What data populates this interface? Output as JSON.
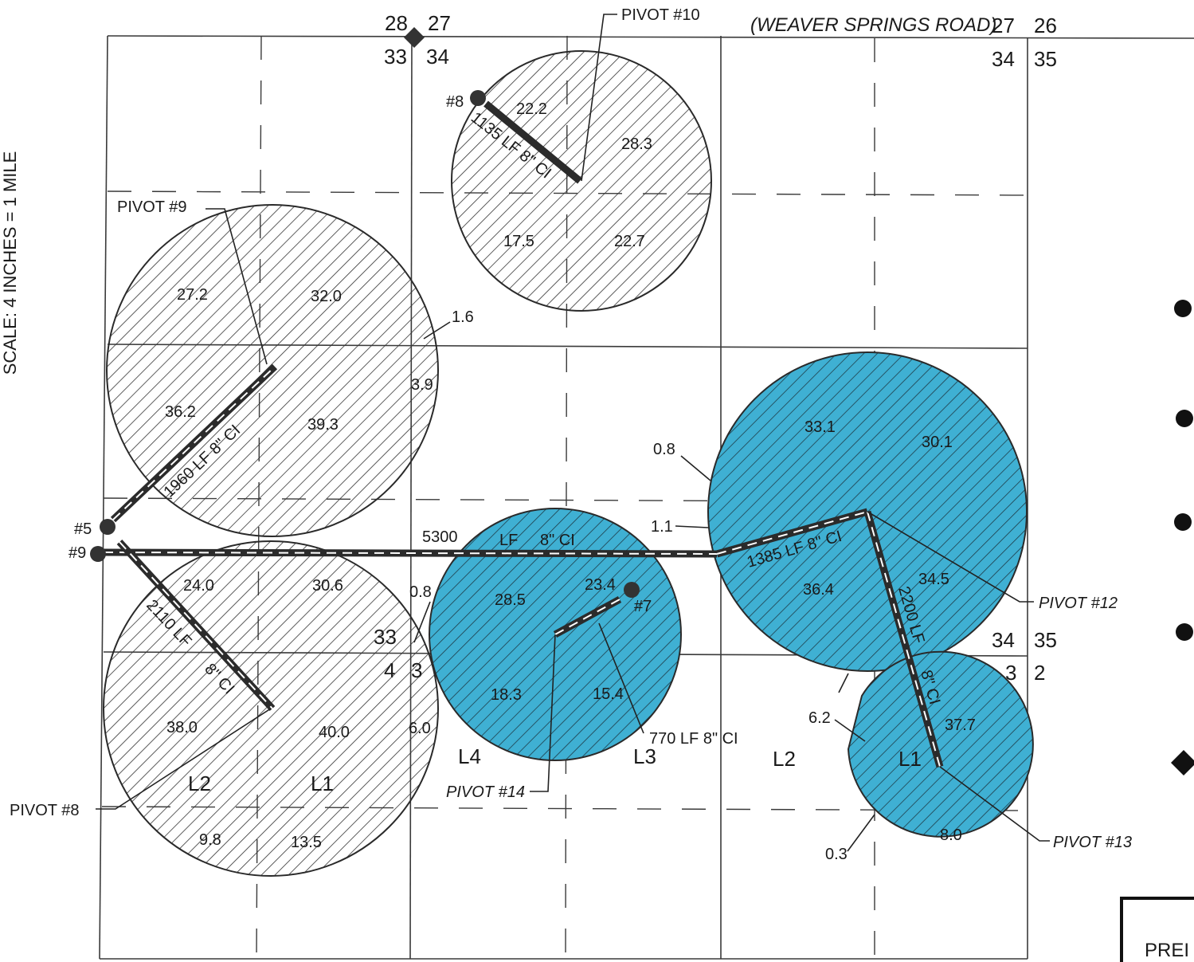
{
  "scale_text": "SCALE: 4 INCHES = 1 MILE",
  "road_text": "(WEAVER SPRINGS ROAD)",
  "title_block_text": "PREI",
  "colors": {
    "proposed": "#3fb0d3",
    "line": "#2b2b2b",
    "paper": "#ffffff"
  },
  "section_numbers": {
    "tl_28": "28",
    "tl_27": "27",
    "tl_33": "33",
    "tl_34": "34",
    "tr_27": "27",
    "tr_26": "26",
    "tr_34": "34",
    "tr_35": "35",
    "mr_34": "34",
    "mr_35": "35",
    "mr_3": "3",
    "mr_2": "2",
    "ml_33": "33",
    "ml_4": "4",
    "ml_3": "3"
  },
  "pivots": {
    "p10": {
      "label": "PIVOT #10",
      "quadrants": [
        "22.2",
        "28.3",
        "17.5",
        "22.7"
      ]
    },
    "p9": {
      "label": "PIVOT #9",
      "quadrants": [
        "27.2",
        "32.0",
        "36.2",
        "39.3"
      ],
      "edge": [
        "1.6",
        "3.9"
      ]
    },
    "p8": {
      "label": "PIVOT #8",
      "quadrants": [
        "24.0",
        "30.6",
        "38.0",
        "40.0",
        "9.8",
        "13.5"
      ],
      "edge": [
        "0.8",
        "6.0"
      ],
      "fields": [
        "L2",
        "L1"
      ]
    },
    "p14": {
      "label": "PIVOT #14",
      "quadrants": [
        "28.5",
        "23.4",
        "18.3",
        "15.4"
      ]
    },
    "p12": {
      "label": "PIVOT #12",
      "quadrants": [
        "33.1",
        "30.1",
        "36.4",
        "34.5"
      ],
      "edge": [
        "0.8",
        "1.1"
      ]
    },
    "p13": {
      "label": "PIVOT #13",
      "quadrants": [
        "37.7",
        "8.0"
      ],
      "edge": [
        "6.2",
        "0.3"
      ],
      "fields": [
        "L1"
      ]
    }
  },
  "fields_middle": [
    "L4",
    "L3",
    "L2"
  ],
  "wells": {
    "w8": "#8",
    "w5": "#5",
    "w9": "#9",
    "w7": "#7"
  },
  "pipes": {
    "main": {
      "length": "5300",
      "unit": "LF",
      "spec": "8\" CI"
    },
    "p8_top": "1135 LF 8\" CI",
    "p9": "1960 LF 8\" CI",
    "p8_bot_len": "2110 LF",
    "p8_bot_spec": "8\" CI",
    "p12": "1385 LF 8\" CI",
    "p13_len": "2200 LF",
    "p13_spec": "8\" CI",
    "p14": "770 LF 8\" CI"
  }
}
